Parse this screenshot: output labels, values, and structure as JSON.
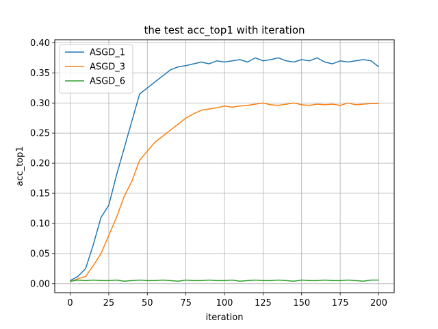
{
  "chart_data": {
    "type": "line",
    "title": "the test acc_top1 with iteration",
    "xlabel": "iteration",
    "ylabel": "acc_top1",
    "xlim": [
      -10,
      210
    ],
    "ylim": [
      -0.015,
      0.405
    ],
    "xticks": [
      0,
      25,
      50,
      75,
      100,
      125,
      150,
      175,
      200
    ],
    "yticks": [
      0.0,
      0.05,
      0.1,
      0.15,
      0.2,
      0.25,
      0.3,
      0.35,
      0.4
    ],
    "ytick_labels": [
      "0.00",
      "0.05",
      "0.10",
      "0.15",
      "0.20",
      "0.25",
      "0.30",
      "0.35",
      "0.40"
    ],
    "grid": true,
    "legend_position": "top-left",
    "series": [
      {
        "name": "ASGD_1",
        "color": "#1f77b4",
        "x": [
          0,
          5,
          10,
          15,
          20,
          25,
          30,
          35,
          40,
          45,
          50,
          55,
          60,
          65,
          70,
          75,
          80,
          85,
          90,
          95,
          100,
          105,
          110,
          115,
          120,
          125,
          130,
          135,
          140,
          145,
          150,
          155,
          160,
          165,
          170,
          175,
          180,
          185,
          190,
          195,
          200
        ],
        "values": [
          0.005,
          0.012,
          0.025,
          0.065,
          0.11,
          0.13,
          0.18,
          0.225,
          0.27,
          0.315,
          0.325,
          0.335,
          0.345,
          0.355,
          0.36,
          0.362,
          0.365,
          0.368,
          0.365,
          0.37,
          0.368,
          0.37,
          0.372,
          0.368,
          0.375,
          0.37,
          0.372,
          0.375,
          0.37,
          0.368,
          0.372,
          0.37,
          0.375,
          0.368,
          0.365,
          0.37,
          0.368,
          0.37,
          0.372,
          0.37,
          0.36
        ]
      },
      {
        "name": "ASGD_3",
        "color": "#ff7f0e",
        "x": [
          0,
          5,
          10,
          15,
          20,
          25,
          30,
          35,
          40,
          45,
          50,
          55,
          60,
          65,
          70,
          75,
          80,
          85,
          90,
          95,
          100,
          105,
          110,
          115,
          120,
          125,
          130,
          135,
          140,
          145,
          150,
          155,
          160,
          165,
          170,
          175,
          180,
          185,
          190,
          195,
          200
        ],
        "values": [
          0.003,
          0.008,
          0.012,
          0.03,
          0.05,
          0.08,
          0.11,
          0.145,
          0.17,
          0.205,
          0.22,
          0.235,
          0.245,
          0.255,
          0.265,
          0.275,
          0.282,
          0.288,
          0.29,
          0.292,
          0.295,
          0.293,
          0.295,
          0.296,
          0.298,
          0.3,
          0.297,
          0.296,
          0.298,
          0.3,
          0.297,
          0.296,
          0.298,
          0.297,
          0.298,
          0.296,
          0.3,
          0.297,
          0.298,
          0.299,
          0.299
        ]
      },
      {
        "name": "ASGD_6",
        "color": "#2ca02c",
        "x": [
          0,
          5,
          10,
          15,
          20,
          25,
          30,
          35,
          40,
          45,
          50,
          55,
          60,
          65,
          70,
          75,
          80,
          85,
          90,
          95,
          100,
          105,
          110,
          115,
          120,
          125,
          130,
          135,
          140,
          145,
          150,
          155,
          160,
          165,
          170,
          175,
          180,
          185,
          190,
          195,
          200
        ],
        "values": [
          0.004,
          0.006,
          0.005,
          0.006,
          0.005,
          0.005,
          0.006,
          0.004,
          0.005,
          0.006,
          0.005,
          0.005,
          0.006,
          0.005,
          0.004,
          0.006,
          0.005,
          0.005,
          0.006,
          0.005,
          0.005,
          0.006,
          0.004,
          0.005,
          0.006,
          0.005,
          0.005,
          0.006,
          0.005,
          0.004,
          0.006,
          0.005,
          0.005,
          0.006,
          0.005,
          0.005,
          0.006,
          0.005,
          0.004,
          0.006,
          0.006
        ]
      }
    ]
  }
}
